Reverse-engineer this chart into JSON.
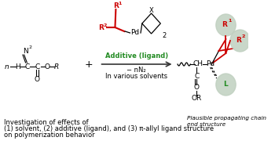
{
  "background_color": "#ffffff",
  "colors": {
    "red": "#cc0000",
    "green": "#228B22",
    "black": "#000000",
    "gray_sphere": "#c0d0c0",
    "arrow_color": "#555555"
  },
  "fs": 6.5,
  "fs_small": 6.0,
  "fs_sub": 4.5,
  "bottom_text_line1": "Investigation of effects of",
  "bottom_text_line2": "(1) solvent, (2) additive (ligand), and (3) π-allyl ligand structure",
  "bottom_text_line3": "on polymerization behavior",
  "plausible_text": "Plausible propagating chain\nend structure",
  "additive_text": "Additive (ligand)",
  "minus_n2_text": "− nN₂",
  "solvents_text": "In various solvents"
}
